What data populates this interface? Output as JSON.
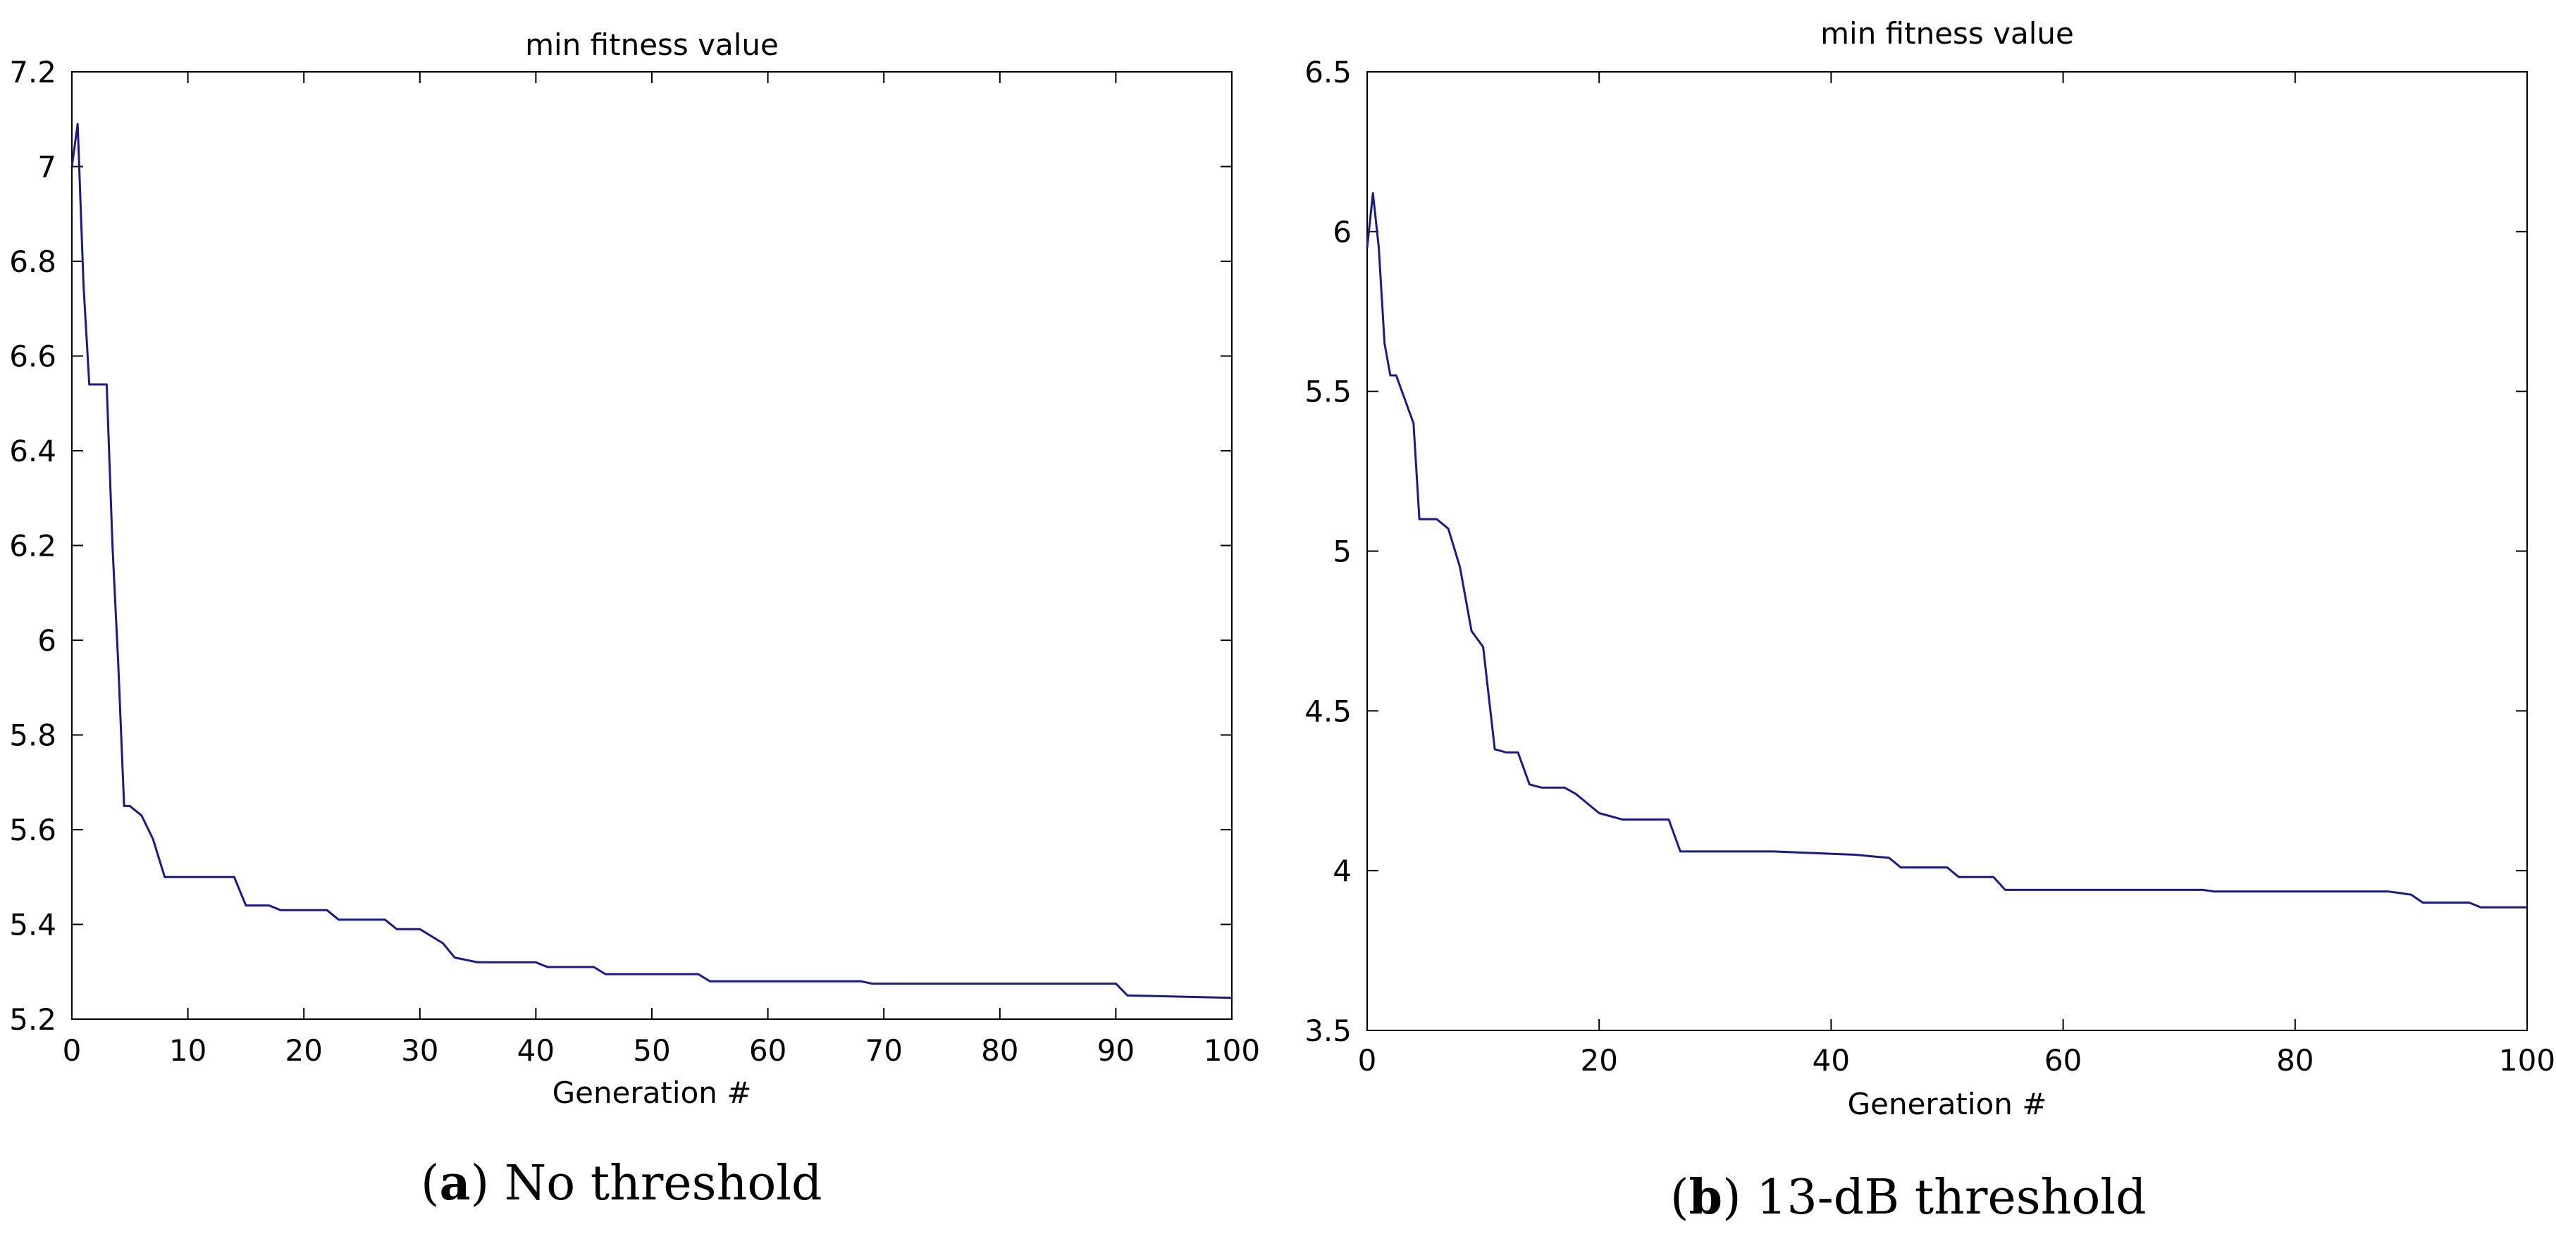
{
  "chart_data": [
    {
      "type": "line",
      "title": "min fitness value",
      "xlabel": "Generation #",
      "ylabel": "",
      "xlim": [
        0,
        100
      ],
      "ylim": [
        5.2,
        7.2
      ],
      "xticks": [
        "0",
        "10",
        "20",
        "30",
        "40",
        "50",
        "60",
        "70",
        "80",
        "90",
        "100"
      ],
      "yticks": [
        "5.2",
        "5.4",
        "5.6",
        "5.8",
        "6",
        "6.2",
        "6.4",
        "6.6",
        "6.8",
        "7",
        "7.2"
      ],
      "grid": false,
      "line_color": "#1a1a8c",
      "caption": {
        "letter": "a",
        "text": "No threshold"
      },
      "series": [
        {
          "x": [
            0,
            0.5,
            1,
            1.5,
            2,
            3,
            3.5,
            4,
            4.5,
            5,
            6,
            7,
            8,
            9,
            14,
            15,
            17,
            18,
            22,
            23,
            27,
            28,
            30,
            32,
            33,
            35,
            40,
            41,
            45,
            46,
            54,
            55,
            68,
            69,
            90,
            91,
            100
          ],
          "y": [
            7.0,
            7.09,
            6.75,
            6.54,
            6.54,
            6.54,
            6.2,
            5.95,
            5.65,
            5.65,
            5.63,
            5.58,
            5.5,
            5.5,
            5.5,
            5.44,
            5.44,
            5.43,
            5.43,
            5.41,
            5.41,
            5.39,
            5.39,
            5.36,
            5.33,
            5.32,
            5.32,
            5.31,
            5.31,
            5.295,
            5.295,
            5.28,
            5.28,
            5.275,
            5.275,
            5.25,
            5.245
          ]
        }
      ]
    },
    {
      "type": "line",
      "title": "min fitness value",
      "xlabel": "Generation #",
      "ylabel": "",
      "xlim": [
        0,
        100
      ],
      "ylim": [
        3.5,
        6.5
      ],
      "xticks": [
        "0",
        "20",
        "40",
        "60",
        "80",
        "100"
      ],
      "yticks": [
        "3.5",
        "4",
        "4.5",
        "5",
        "5.5",
        "6",
        "6.5"
      ],
      "grid": false,
      "line_color": "#1a1a8c",
      "caption": {
        "letter": "b",
        "text": "13-dB threshold"
      },
      "series": [
        {
          "x": [
            0,
            0.5,
            1,
            1.5,
            2,
            2.5,
            3,
            4,
            4.5,
            5,
            6,
            7,
            8,
            9,
            10,
            11,
            12,
            13,
            14,
            15,
            16,
            17,
            18,
            19,
            20,
            21,
            22,
            23,
            26,
            27,
            28,
            35,
            42,
            45,
            46,
            50,
            51,
            54,
            55,
            72,
            73,
            88,
            89,
            90,
            91,
            95,
            96,
            100
          ],
          "y": [
            5.95,
            6.12,
            5.95,
            5.65,
            5.55,
            5.55,
            5.5,
            5.4,
            5.1,
            5.1,
            5.1,
            5.07,
            4.95,
            4.75,
            4.7,
            4.38,
            4.37,
            4.37,
            4.27,
            4.26,
            4.26,
            4.26,
            4.24,
            4.21,
            4.18,
            4.17,
            4.16,
            4.16,
            4.16,
            4.06,
            4.06,
            4.06,
            4.05,
            4.04,
            4.01,
            4.01,
            3.98,
            3.98,
            3.94,
            3.94,
            3.935,
            3.935,
            3.93,
            3.925,
            3.9,
            3.9,
            3.885,
            3.885
          ]
        }
      ]
    }
  ]
}
